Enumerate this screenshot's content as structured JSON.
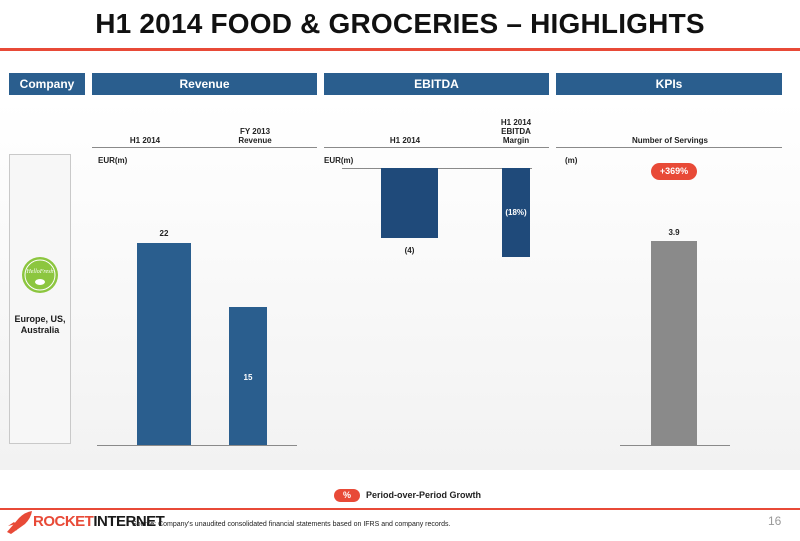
{
  "title": "H1 2014 FOOD & GROCERIES – HIGHLIGHTS",
  "headers": {
    "company": "Company",
    "revenue": "Revenue",
    "ebitda": "EBITDA",
    "kpis": "KPIs"
  },
  "company": {
    "name": "Europe, US, Australia",
    "logo_text": "HelloFresh"
  },
  "chart_data": [
    {
      "type": "bar",
      "title": "Revenue",
      "unit_label": "EUR(m)",
      "categories": [
        "H1 2014",
        "FY 2013 Revenue"
      ],
      "category_labels": [
        "H1 2014",
        "FY 2013\nRevenue"
      ],
      "values": [
        22,
        15
      ],
      "value_labels": [
        "22",
        "15"
      ],
      "ylim": [
        0,
        22
      ]
    },
    {
      "type": "bar",
      "title": "EBITDA",
      "unit_label": "EUR(m)",
      "categories": [
        "H1 2014",
        "H1 2014 EBITDA Margin"
      ],
      "category_labels": [
        "H1 2014",
        "H1 2014\nEBITDA\nMargin"
      ],
      "values": [
        -4,
        -18
      ],
      "value_units": [
        "EUR(m)",
        "%"
      ],
      "value_labels": [
        "(4)",
        "(18%)"
      ]
    },
    {
      "type": "bar",
      "title": "KPIs",
      "unit_label": "(m)",
      "categories": [
        "Number of Servings"
      ],
      "values": [
        3.9
      ],
      "value_labels": [
        "3.9"
      ],
      "growth_badge": "+369%"
    }
  ],
  "legend": {
    "badge": "%",
    "text": "Period-over-Period Growth"
  },
  "footer": {
    "brand_left": "ROCKET",
    "brand_right": "INTERNET",
    "source": "Source: Company's unaudited consolidated financial statements based on IFRS and company records.",
    "page_number": "16"
  },
  "colors": {
    "accent": "#e84a37",
    "primary_blue": "#2a5e8e",
    "dark_blue": "#1f4a7a",
    "gray_bar": "#8a8a8a"
  }
}
